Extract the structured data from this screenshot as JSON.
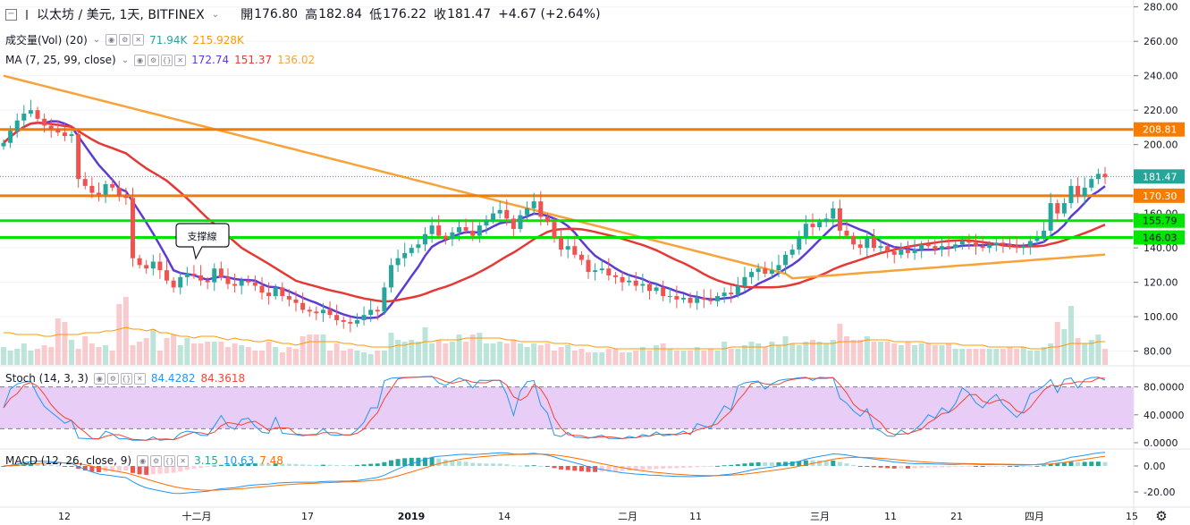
{
  "header": {
    "collapse_icon": "square-minus-icon",
    "symbol_icon": "flag-icon",
    "symbol": "以太坊 / 美元, 1天, BITFINEX",
    "open_label": "開",
    "open": "176.80",
    "high_label": "高",
    "high": "182.84",
    "low_label": "低",
    "low": "176.22",
    "close_label": "收",
    "close": "181.47",
    "change": "+4.67 (+2.64%)"
  },
  "indicators": {
    "volume": {
      "label": "成交量(Vol) (20)",
      "v1": "71.94K",
      "v2": "215.928K",
      "c1": "#26a69a",
      "c2": "#ff9800"
    },
    "ma": {
      "label": "MA (7, 25, 99, close)",
      "v1": "172.74",
      "v2": "151.37",
      "v3": "136.02",
      "c1": "#5b3cd6",
      "c2": "#e53935",
      "c3": "#f7a33a"
    },
    "stoch": {
      "label": "Stoch (14, 3, 3)",
      "v1": "84.4282",
      "v2": "84.3618",
      "c1": "#2196f3",
      "c2": "#f44336"
    },
    "macd": {
      "label": "MACD (12, 26, close, 9)",
      "v1": "3.15",
      "v2": "10.63",
      "v3": "7.48",
      "c1": "#26a69a",
      "c2": "#2196f3",
      "c3": "#ff6d00"
    }
  },
  "annotation": {
    "text": "支撑線"
  },
  "chart_data": {
    "type": "candlestick",
    "price_axis": {
      "ticks": [
        "280.00",
        "260.00",
        "240.00",
        "220.00",
        "200.00",
        "180.00",
        "160.00",
        "140.00",
        "120.00",
        "100.00",
        "80.00"
      ],
      "min": 72,
      "max": 284
    },
    "price_labels": [
      {
        "value": 208.81,
        "text": "208.81",
        "color": "#f57c00"
      },
      {
        "value": 181.47,
        "text": "181.47",
        "color": "#26a69a"
      },
      {
        "value": 170.3,
        "text": "170.30",
        "color": "#f57c00"
      },
      {
        "value": 155.79,
        "text": "155.79",
        "color": "#00e600"
      },
      {
        "value": 146.03,
        "text": "146.03",
        "color": "#00e600"
      }
    ],
    "horizontal_lines": [
      {
        "value": 208.81,
        "color": "#f57c00"
      },
      {
        "value": 170.3,
        "color": "#f57c00"
      },
      {
        "value": 155.79,
        "color": "#00e600"
      },
      {
        "value": 146.03,
        "color": "#00e600"
      }
    ],
    "x_labels": [
      "12",
      "十二月",
      "17",
      "2019",
      "14",
      "二月",
      "11",
      "三月",
      "11",
      "21",
      "四月",
      "15"
    ],
    "closes": [
      201,
      208,
      214,
      218,
      220,
      215,
      211,
      209,
      207,
      205,
      206,
      180,
      176,
      172,
      171,
      177,
      175,
      170,
      169,
      134,
      130,
      128,
      132,
      127,
      121,
      117,
      123,
      125,
      124,
      121,
      120,
      128,
      123,
      119,
      118,
      121,
      120,
      118,
      114,
      112,
      117,
      112,
      110,
      108,
      104,
      103,
      102,
      104,
      101,
      98,
      97,
      96,
      98,
      101,
      104,
      103,
      117,
      130,
      134,
      137,
      140,
      142,
      148,
      153,
      147,
      145,
      149,
      152,
      150,
      147,
      153,
      156,
      160,
      162,
      157,
      151,
      159,
      163,
      167,
      158,
      155,
      146,
      139,
      141,
      136,
      133,
      126,
      127,
      128,
      124,
      123,
      120,
      121,
      118,
      119,
      115,
      117,
      112,
      112,
      110,
      111,
      108,
      111,
      110,
      109,
      112,
      114,
      113,
      118,
      123,
      126,
      128,
      125,
      127,
      130,
      136,
      139,
      146,
      154,
      152,
      155,
      157,
      163,
      150,
      147,
      142,
      140,
      146,
      140,
      141,
      138,
      136,
      139,
      137,
      139,
      142,
      141,
      139,
      141,
      140,
      142,
      144,
      143,
      141,
      140,
      142,
      143,
      142,
      141,
      140,
      141,
      144,
      146,
      150,
      166,
      160,
      166,
      176,
      170,
      175,
      180,
      183,
      181
    ],
    "volumes": [
      10,
      8,
      9,
      12,
      8,
      9,
      11,
      10,
      26,
      24,
      14,
      9,
      16,
      12,
      10,
      11,
      8,
      34,
      38,
      11,
      13,
      15,
      20,
      8,
      15,
      17,
      11,
      15,
      12,
      12,
      13,
      13,
      13,
      10,
      12,
      11,
      10,
      8,
      8,
      13,
      10,
      7,
      10,
      9,
      16,
      17,
      17,
      17,
      8,
      12,
      8,
      9,
      8,
      7,
      6,
      8,
      8,
      18,
      14,
      13,
      14,
      13,
      21,
      12,
      14,
      12,
      13,
      17,
      13,
      17,
      18,
      12,
      12,
      13,
      12,
      14,
      12,
      10,
      12,
      11,
      12,
      8,
      10,
      11,
      8,
      9,
      7,
      7,
      7,
      9,
      9,
      7,
      7,
      8,
      10,
      8,
      11,
      12,
      9,
      8,
      8,
      8,
      10,
      8,
      9,
      8,
      13,
      9,
      9,
      11,
      13,
      12,
      10,
      13,
      11,
      16,
      12,
      11,
      13,
      14,
      13,
      12,
      14,
      23,
      16,
      14,
      14,
      16,
      13,
      13,
      13,
      12,
      11,
      13,
      11,
      12,
      12,
      11,
      11,
      12,
      9,
      9,
      9,
      9,
      9,
      9,
      9,
      9,
      10,
      9,
      10,
      8,
      8,
      10,
      12,
      24,
      20,
      33,
      15,
      12,
      14,
      17,
      9
    ],
    "vol_ma": [
      18,
      18,
      17,
      17,
      17,
      17,
      16,
      16,
      17,
      17,
      17,
      17,
      18,
      18,
      18,
      19,
      19,
      20,
      21,
      20,
      20,
      19,
      20,
      18,
      18,
      17,
      16,
      16,
      15,
      16,
      16,
      16,
      15,
      14,
      15,
      14,
      14,
      13,
      13,
      14,
      13,
      12,
      12,
      11,
      12,
      13,
      13,
      13,
      13,
      13,
      12,
      12,
      11,
      11,
      10,
      10,
      10,
      10,
      11,
      11,
      12,
      12,
      13,
      13,
      14,
      14,
      14,
      14,
      15,
      15,
      15,
      15,
      15,
      15,
      14,
      14,
      13,
      13,
      13,
      13,
      13,
      12,
      12,
      12,
      11,
      11,
      11,
      10,
      10,
      10,
      9,
      9,
      9,
      9,
      9,
      9,
      9,
      9,
      9,
      9,
      9,
      9,
      9,
      9,
      9,
      9,
      9,
      10,
      10,
      10,
      10,
      10,
      10,
      11,
      11,
      11,
      12,
      12,
      12,
      12,
      12,
      12,
      12,
      13,
      13,
      13,
      13,
      14,
      14,
      14,
      14,
      13,
      13,
      13,
      13,
      13,
      12,
      12,
      12,
      12,
      12,
      11,
      11,
      11,
      11,
      10,
      10,
      10,
      10,
      10,
      10,
      9,
      9,
      9,
      10,
      10,
      11,
      12,
      12,
      12,
      12,
      13,
      13
    ],
    "ma_periods": [
      7,
      25,
      99
    ],
    "stoch": {
      "ticks": [
        "80.0000",
        "40.0000",
        "0.0000"
      ],
      "upper": 80,
      "lower": 20
    },
    "macd": {
      "ticks": [
        "0.00",
        "-20.00"
      ]
    }
  }
}
